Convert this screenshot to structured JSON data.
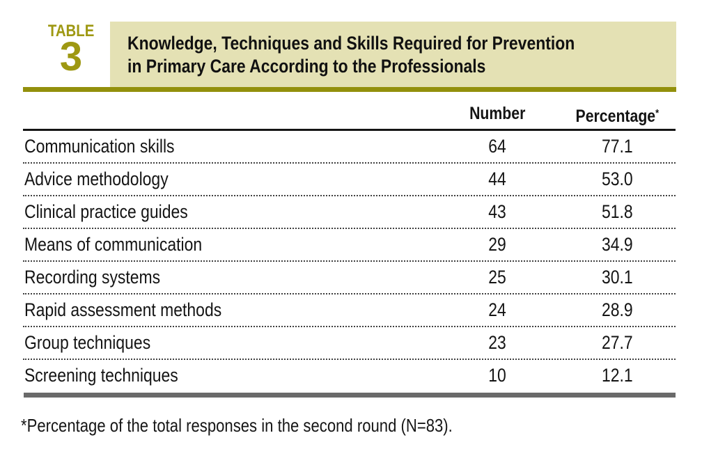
{
  "label": {
    "word": "TABLE",
    "number": "3"
  },
  "title": {
    "line1": "Knowledge, Techniques and Skills Required for Prevention",
    "line2": "in Primary Care According to the Professionals"
  },
  "columns": {
    "item": "",
    "number": "Number",
    "percentage": "Percentage",
    "percentage_mark": "*"
  },
  "rows": [
    {
      "label": "Communication skills",
      "number": "64",
      "percentage": "77.1"
    },
    {
      "label": "Advice methodology",
      "number": "44",
      "percentage": "53.0"
    },
    {
      "label": "Clinical practice guides",
      "number": "43",
      "percentage": "51.8"
    },
    {
      "label": "Means of communication",
      "number": "29",
      "percentage": "34.9"
    },
    {
      "label": "Recording systems",
      "number": "25",
      "percentage": "30.1"
    },
    {
      "label": "Rapid assessment methods",
      "number": "24",
      "percentage": "28.9"
    },
    {
      "label": "Group techniques",
      "number": "23",
      "percentage": "27.7"
    },
    {
      "label": "Screening techniques",
      "number": "10",
      "percentage": "12.1"
    }
  ],
  "footnote": {
    "text": "*Percentage of the total responses in the second round (N=83)."
  },
  "colors": {
    "accent_olive": "#9e9812",
    "beige": "#e4e1b4",
    "rule_olive": "#93900c",
    "bar_gray": "#6a6a6a",
    "dot_gray": "#3f3f3f"
  }
}
